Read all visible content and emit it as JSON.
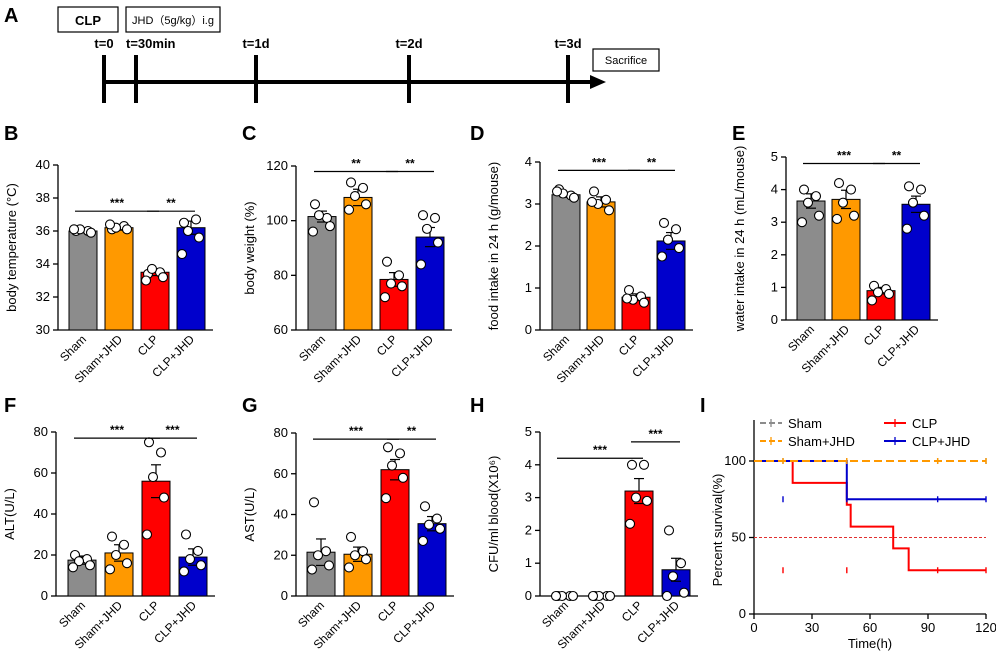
{
  "timeline": {
    "panel_label": "A",
    "box1": "CLP",
    "box2": "JHD（5g/kg）i.g",
    "ticks": [
      {
        "label": "t=0",
        "day": 0
      },
      {
        "label": "t=30min",
        "day": 0.021
      },
      {
        "label": "t=1d",
        "day": 1
      },
      {
        "label": "t=2d",
        "day": 2
      },
      {
        "label": "t=3d",
        "day": 3
      }
    ],
    "end_box": "Sacrifice"
  },
  "colors": {
    "Sham": "#8c8c8c",
    "Sham+JHD": "#ff9900",
    "CLP": "#ff0000",
    "CLP+JHD": "#0000cc"
  },
  "chart_data": [
    {
      "panel": "B",
      "type": "bar",
      "categories": [
        "Sham",
        "Sham+JHD",
        "CLP",
        "CLP+JHD"
      ],
      "values": [
        36.0,
        36.2,
        33.5,
        36.2
      ],
      "errors": [
        0.1,
        0.15,
        0.2,
        0.4
      ],
      "points": [
        [
          36.0,
          36.0,
          36.1,
          35.9,
          36.1
        ],
        [
          36.1,
          36.3,
          36.2,
          36.1,
          36.4
        ],
        [
          33.4,
          33.5,
          33.7,
          33.2,
          33.0
        ],
        [
          36.5,
          36.7,
          36.0,
          35.6,
          34.6
        ]
      ],
      "ylabel": "body temperature (°C)",
      "ylim": [
        30,
        40
      ],
      "yticks": [
        30,
        32,
        34,
        36,
        38,
        40
      ],
      "significance": [
        {
          "from": 0,
          "to": 2,
          "label": "***",
          "y": 37.2
        },
        {
          "from": 2,
          "to": 3,
          "label": "**",
          "y": 37.2
        }
      ]
    },
    {
      "panel": "C",
      "type": "bar",
      "categories": [
        "Sham",
        "Sham+JHD",
        "CLP",
        "CLP+JHD"
      ],
      "values": [
        101.5,
        108.5,
        78.5,
        94.0
      ],
      "errors": [
        2.0,
        3.0,
        2.5,
        3.5
      ],
      "points": [
        [
          106,
          101,
          102,
          98,
          96
        ],
        [
          114,
          112,
          109,
          106,
          104
        ],
        [
          85,
          80,
          77,
          76,
          72
        ],
        [
          102,
          101,
          97,
          92,
          84
        ]
      ],
      "ylabel": "body weight (%)",
      "ylim": [
        60,
        120
      ],
      "yticks": [
        60,
        80,
        100,
        120
      ],
      "significance": [
        {
          "from": 0,
          "to": 2,
          "label": "**",
          "y": 118
        },
        {
          "from": 2,
          "to": 3,
          "label": "**",
          "y": 118
        }
      ]
    },
    {
      "panel": "D",
      "type": "bar",
      "categories": [
        "Sham",
        "Sham+JHD",
        "CLP",
        "CLP+JHD"
      ],
      "values": [
        3.22,
        3.05,
        0.78,
        2.12
      ],
      "errors": [
        0.06,
        0.12,
        0.08,
        0.2
      ],
      "points": [
        [
          3.35,
          3.2,
          3.25,
          3.15,
          3.3
        ],
        [
          3.3,
          3.1,
          3.0,
          2.85,
          3.05
        ],
        [
          0.95,
          0.8,
          0.72,
          0.65,
          0.75
        ],
        [
          2.55,
          2.4,
          2.15,
          1.95,
          1.75
        ]
      ],
      "ylabel": "food intake in 24 h (g/mouse)",
      "ylim": [
        0,
        4
      ],
      "yticks": [
        0,
        1,
        2,
        3,
        4
      ],
      "significance": [
        {
          "from": 0,
          "to": 2,
          "label": "***",
          "y": 3.8
        },
        {
          "from": 2,
          "to": 3,
          "label": "**",
          "y": 3.8
        }
      ]
    },
    {
      "panel": "E",
      "type": "bar",
      "categories": [
        "Sham",
        "Sham+JHD",
        "CLP",
        "CLP+JHD"
      ],
      "values": [
        3.65,
        3.7,
        0.9,
        3.55
      ],
      "errors": [
        0.22,
        0.28,
        0.1,
        0.25
      ],
      "points": [
        [
          4.0,
          3.8,
          3.6,
          3.2,
          3.0
        ],
        [
          4.2,
          4.0,
          3.6,
          3.2,
          3.1
        ],
        [
          1.05,
          0.95,
          0.85,
          0.8,
          0.6
        ],
        [
          4.1,
          4.0,
          3.6,
          3.2,
          2.8
        ]
      ],
      "ylabel": "water intake in 24 h (mL/mouse)",
      "ylim": [
        0,
        5
      ],
      "yticks": [
        0,
        1,
        2,
        3,
        4,
        5
      ],
      "significance": [
        {
          "from": 0,
          "to": 2,
          "label": "***",
          "y": 4.8
        },
        {
          "from": 2,
          "to": 3,
          "label": "**",
          "y": 4.8
        }
      ]
    },
    {
      "panel": "F",
      "type": "bar",
      "categories": [
        "Sham",
        "Sham+JHD",
        "CLP",
        "CLP+JHD"
      ],
      "values": [
        17.5,
        21.0,
        56.0,
        19.0
      ],
      "errors": [
        2.0,
        4.0,
        8.0,
        4.0
      ],
      "points": [
        [
          20,
          18,
          17,
          15,
          14
        ],
        [
          29,
          25,
          20,
          16,
          13
        ],
        [
          75,
          70,
          58,
          48,
          30
        ],
        [
          30,
          22,
          18,
          15,
          12
        ]
      ],
      "ylabel": "ALT(U/L)",
      "ylim": [
        0,
        80
      ],
      "yticks": [
        0,
        20,
        40,
        60,
        80
      ],
      "significance": [
        {
          "from": 0,
          "to": 2,
          "label": "***",
          "y": 77
        },
        {
          "from": 2,
          "to": 3,
          "label": "***",
          "y": 77
        }
      ]
    },
    {
      "panel": "G",
      "type": "bar",
      "categories": [
        "Sham",
        "Sham+JHD",
        "CLP",
        "CLP+JHD"
      ],
      "values": [
        21.5,
        20.5,
        62.0,
        35.5
      ],
      "errors": [
        6.5,
        3.5,
        5.0,
        3.5
      ],
      "points": [
        [
          46,
          22,
          20,
          15,
          13
        ],
        [
          29,
          22,
          20,
          18,
          14
        ],
        [
          73,
          70,
          64,
          58,
          48
        ],
        [
          44,
          38,
          35,
          33,
          27
        ]
      ],
      "ylabel": "AST(U/L)",
      "ylim": [
        0,
        80
      ],
      "yticks": [
        0,
        20,
        40,
        60,
        80
      ],
      "significance": [
        {
          "from": 0,
          "to": 2,
          "label": "***",
          "y": 77
        },
        {
          "from": 2,
          "to": 3,
          "label": "**",
          "y": 77
        }
      ]
    },
    {
      "panel": "H",
      "type": "bar",
      "categories": [
        "Sham",
        "Sham+JHD",
        "CLP",
        "CLP+JHD"
      ],
      "values": [
        0,
        0,
        3.2,
        0.8
      ],
      "errors": [
        0,
        0,
        0.38,
        0.35
      ],
      "points": [
        [
          0,
          0,
          0,
          0,
          0
        ],
        [
          0,
          0,
          0,
          0,
          0
        ],
        [
          4.0,
          4.0,
          3.0,
          2.9,
          2.2
        ],
        [
          2.0,
          1.0,
          0.6,
          0.1,
          0
        ]
      ],
      "ylabel": "CFU/ml blood(X10⁶)",
      "ylim": [
        0,
        5
      ],
      "yticks": [
        0,
        1,
        2,
        3,
        4,
        5
      ],
      "significance": [
        {
          "from": 0,
          "to": 2,
          "label": "***",
          "y": 4.2
        },
        {
          "from": 2,
          "to": 3,
          "label": "***",
          "y": 4.7
        }
      ]
    },
    {
      "panel": "I",
      "type": "line",
      "title": "",
      "xlabel": "Time(h)",
      "ylabel": "Percent survival(%)",
      "xlim": [
        0,
        120
      ],
      "ylim": [
        0,
        100
      ],
      "xticks": [
        0,
        30,
        60,
        90,
        120
      ],
      "yticks": [
        0,
        50,
        100
      ],
      "reference_line": 50,
      "legend": [
        "Sham",
        "Sham+JHD",
        "CLP",
        "CLP+JHD"
      ],
      "series": [
        {
          "name": "Sham",
          "style": "dashed",
          "x": [
            0,
            120
          ],
          "y": [
            100,
            100
          ]
        },
        {
          "name": "Sham+JHD",
          "style": "dashed",
          "x": [
            0,
            120
          ],
          "y": [
            100,
            100
          ]
        },
        {
          "name": "CLP",
          "style": "solid",
          "x": [
            0,
            20,
            20,
            48,
            48,
            50,
            50,
            72,
            72,
            80,
            80,
            120
          ],
          "y": [
            100,
            100,
            85.7,
            85.7,
            71.4,
            71.4,
            57.1,
            57.1,
            42.9,
            42.9,
            28.6,
            28.6
          ]
        },
        {
          "name": "CLP+JHD",
          "style": "solid",
          "x": [
            0,
            48,
            48,
            120
          ],
          "y": [
            100,
            100,
            75,
            75
          ]
        }
      ]
    }
  ]
}
